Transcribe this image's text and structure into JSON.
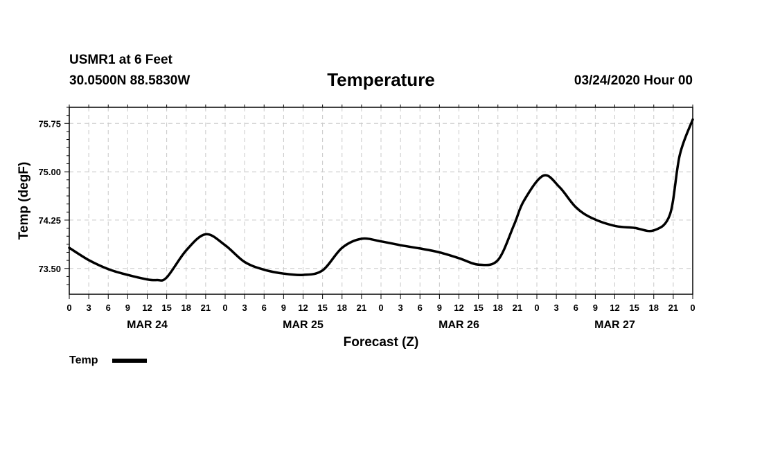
{
  "header": {
    "station": "USMR1 at 6 Feet",
    "coords": "30.0500N 88.5830W",
    "title": "Temperature",
    "datetime": "03/24/2020 Hour 00"
  },
  "chart_data": {
    "type": "line",
    "title": "Temperature",
    "xlabel": "Forecast (Z)",
    "ylabel": "Temp (degF)",
    "ylim": [
      73.1,
      76.0
    ],
    "yticks": [
      73.5,
      74.25,
      75.0,
      75.75
    ],
    "ytick_labels": [
      "73.50",
      "74.25",
      "75.00",
      "75.75"
    ],
    "xlim": [
      0,
      96
    ],
    "xtick_hours": [
      0,
      3,
      6,
      9,
      12,
      15,
      18,
      21,
      24,
      27,
      30,
      33,
      36,
      39,
      42,
      45,
      48,
      51,
      54,
      57,
      60,
      63,
      66,
      69,
      72,
      75,
      78,
      81,
      84,
      87,
      90,
      93,
      96
    ],
    "xtick_labels": [
      "0",
      "3",
      "6",
      "9",
      "12",
      "15",
      "18",
      "21",
      "0",
      "3",
      "6",
      "9",
      "12",
      "15",
      "18",
      "21",
      "0",
      "3",
      "6",
      "9",
      "12",
      "15",
      "18",
      "21",
      "0",
      "3",
      "6",
      "9",
      "12",
      "15",
      "18",
      "21",
      "0"
    ],
    "date_labels": [
      {
        "text": "MAR 24",
        "hour": 12
      },
      {
        "text": "MAR 25",
        "hour": 36
      },
      {
        "text": "MAR 26",
        "hour": 60
      },
      {
        "text": "MAR 27",
        "hour": 84
      }
    ],
    "grid": true,
    "legend": {
      "label": "Temp",
      "position": "bottom-left"
    },
    "series": [
      {
        "name": "Temp",
        "x": [
          0,
          3,
          6,
          9,
          12,
          13.5,
          15,
          18,
          21,
          24,
          27,
          30,
          33,
          36,
          39,
          42,
          45,
          48,
          51,
          54,
          57,
          60,
          63,
          66,
          68.5,
          70,
          73,
          75.5,
          78,
          80.5,
          84,
          87,
          90,
          92.5,
          94,
          96
        ],
        "values": [
          73.82,
          73.63,
          73.49,
          73.4,
          73.33,
          73.32,
          73.36,
          73.78,
          74.03,
          73.86,
          73.6,
          73.48,
          73.42,
          73.4,
          73.47,
          73.82,
          73.96,
          73.92,
          73.86,
          73.81,
          73.75,
          73.66,
          73.56,
          73.63,
          74.18,
          74.55,
          74.94,
          74.76,
          74.45,
          74.28,
          74.16,
          74.13,
          74.09,
          74.34,
          75.26,
          75.81
        ]
      }
    ]
  }
}
